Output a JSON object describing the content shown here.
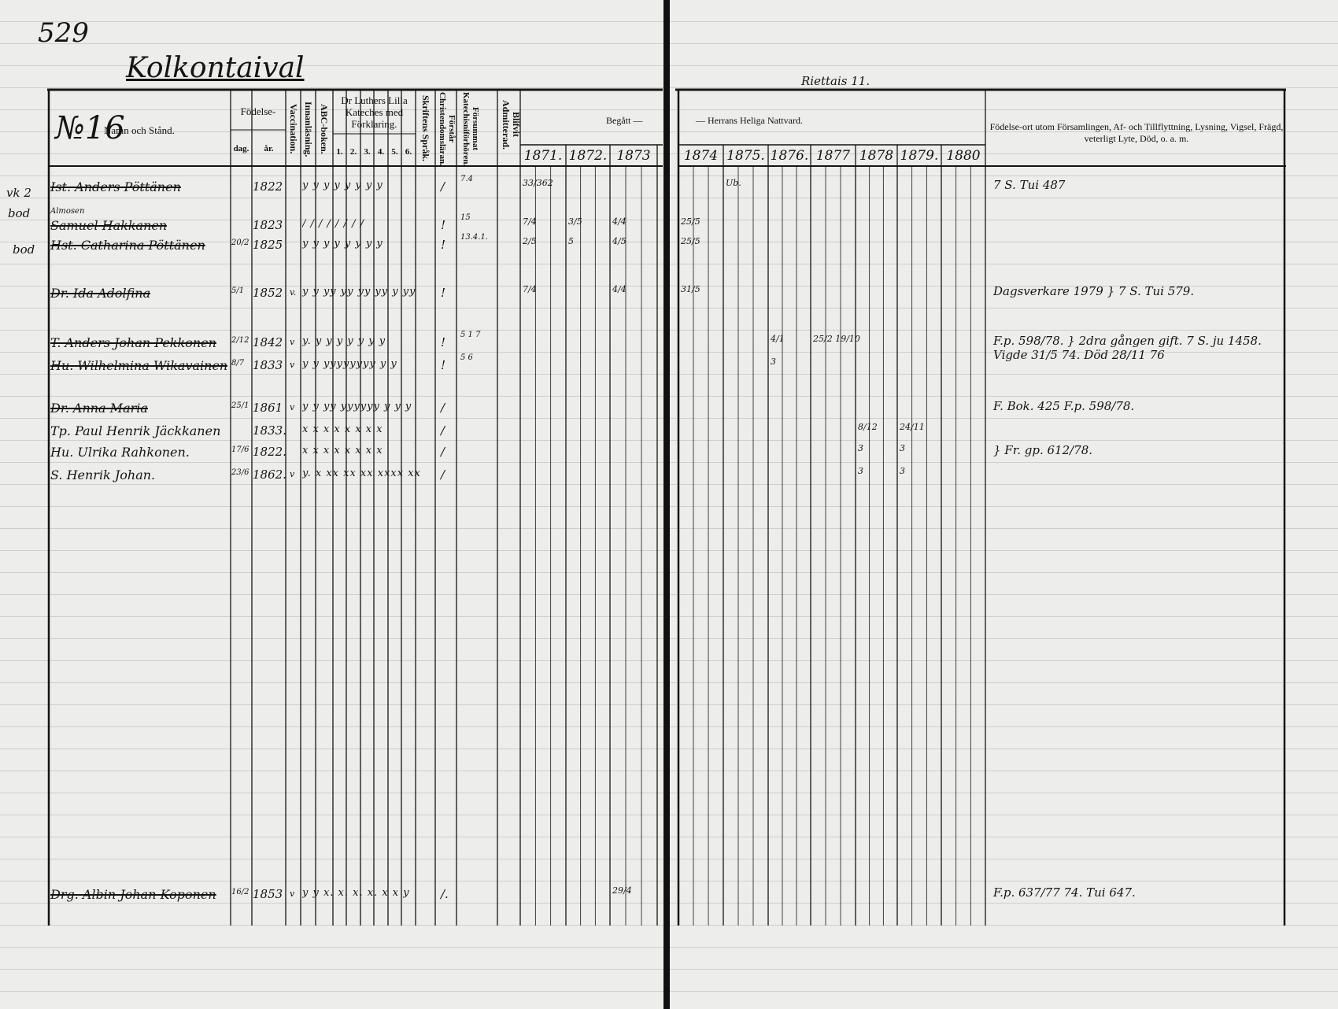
{
  "page_number": "529",
  "village": "Kolkontaival",
  "right_header": "Riettais 11.",
  "header": {
    "no_label": "№16",
    "name_label": "Namn och Stånd.",
    "birth_label": "Födelse-",
    "day_label": "dag.",
    "year_label": "år.",
    "vaccination": "Vaccination.",
    "reading": "Innanläsning.",
    "abc": "ABC-boken.",
    "catechism": "Dr Luthers Lilla Kateches med Förklaring.",
    "cat_parts": [
      "1.",
      "2.",
      "3.",
      "4.",
      "5.",
      "6."
    ],
    "scripture": "Skriftens Språk.",
    "understands": "Förstår Christendomsläran.",
    "missed": "Försummat Katechisniförhören.",
    "admitted": "Blifvit Admitterad.",
    "communion_left": "Begått —",
    "communion_right": "— Herrans Heliga Nattvard.",
    "remarks": "Födelse-ort utom Församlingen, Af- och Tillflyttning, Lysning, Vigsel, Frägd, veterligt Lyte, Död, o. a. m.",
    "years_left": [
      "1871.",
      "1872.",
      "1873"
    ],
    "years_right": [
      "1874",
      "1875.",
      "1876.",
      "1877",
      "1878",
      "1879.",
      "1880"
    ]
  },
  "margin_notes": [
    "vk 2",
    "bod",
    "bod"
  ],
  "rows": [
    {
      "name": "Ist. Anders Pöttänen",
      "struck": true,
      "day": "",
      "year": "1822",
      "vacc": "",
      "marks": "y  y  y  y  y  y  y  y",
      "admit": "/",
      "kat": "7.4",
      "adm": "33/362",
      "comm": [
        {
          "col": 4,
          "text": "Ub."
        }
      ],
      "remark": "7 S. Tui 487"
    },
    {
      "name": "Samuel Hakkanen",
      "above": "Almosen",
      "struck": true,
      "day": "",
      "year": "1823",
      "vacc": "",
      "marks": "/  /  /  /  /  /  /  /",
      "admit": "!",
      "kat": "15",
      "adm": "7/4",
      "comm": [
        {
          "col": 1,
          "text": "3/5"
        },
        {
          "col": 2,
          "text": "4/4"
        },
        {
          "col": 3,
          "text": "25/5"
        }
      ],
      "remark": ""
    },
    {
      "name": "Hst. Catharina Pöttänen",
      "struck": true,
      "day": "20/2",
      "year": "1825",
      "vacc": "",
      "marks": "y  y  y  y  y  y  y  y",
      "admit": "!",
      "kat": "13.4.1.",
      "adm": "2/5",
      "comm": [
        {
          "col": 1,
          "text": "5"
        },
        {
          "col": 2,
          "text": "4/5"
        },
        {
          "col": 3,
          "text": "25/5"
        }
      ],
      "remark": ""
    },
    {
      "name": "Dr. Ida Adolfina",
      "struck": true,
      "day": "5/1",
      "year": "1852",
      "vacc": "v.",
      "marks": "y y yy yy yy yy y yy",
      "admit": "!",
      "kat": "",
      "adm": "7/4",
      "comm": [
        {
          "col": 2,
          "text": "4/4"
        },
        {
          "col": 3,
          "text": "31/5"
        }
      ],
      "remark": "Dagsverkare 1979  } 7 S. Tui 579."
    },
    {
      "name": "T. Anders Johan Pekkonen",
      "struck": true,
      "day": "2/12",
      "year": "1842",
      "vacc": "v",
      "marks": "y.  y y  y y  y y  y",
      "admit": "!",
      "kat": "5 1 7",
      "adm": "",
      "comm": [
        {
          "col": 5,
          "text": "4/1"
        },
        {
          "col": 6,
          "text": "25/2 19/10"
        }
      ],
      "remark": "F.p. 598/78.  } 2dra gången gift. 7 S. ju 1458. Vigde 31/5 74. Död 28/11 76"
    },
    {
      "name": "Hu. Wilhelmina Wikavainen",
      "struck": true,
      "day": "8/7",
      "year": "1833",
      "vacc": "v",
      "marks": "y  y  yyyyyyyy  y y",
      "admit": "!",
      "kat": "5 6",
      "adm": "",
      "comm": [
        {
          "col": 5,
          "text": "3"
        }
      ],
      "remark": ""
    },
    {
      "name": "Dr. Anna Maria",
      "struck": true,
      "day": "25/1",
      "year": "1861",
      "vacc": "v",
      "marks": "y y yy yyyyyy y y y",
      "admit": "/",
      "kat": "",
      "adm": "",
      "comm": [],
      "remark": "F. Bok. 425  F.p. 598/78."
    },
    {
      "name": "Tp. Paul Henrik Jäckkanen",
      "struck": false,
      "day": "",
      "year": "1833.",
      "vacc": "",
      "marks": "x  x  x  x  x  x  x  x",
      "admit": "/",
      "kat": "",
      "adm": "",
      "comm": [
        {
          "col": 7,
          "text": "8/12"
        },
        {
          "col": 8,
          "text": "24/11"
        }
      ],
      "remark": ""
    },
    {
      "name": "Hu. Ulrika Rahkonen.",
      "struck": false,
      "day": "17/6",
      "year": "1822.",
      "vacc": "",
      "marks": "x  x  x  x  x  x  x  x",
      "admit": "/",
      "kat": "",
      "adm": "",
      "comm": [
        {
          "col": 7,
          "text": "3"
        },
        {
          "col": 8,
          "text": "3"
        }
      ],
      "remark": "} Fr. gp. 612/78."
    },
    {
      "name": "S. Henrik Johan.",
      "struck": false,
      "day": "23/6",
      "year": "1862.",
      "vacc": "v",
      "marks": "y. x xx xx xx xxxx xx xx",
      "admit": "/",
      "kat": "",
      "adm": "",
      "comm": [
        {
          "col": 7,
          "text": "3"
        },
        {
          "col": 8,
          "text": "3"
        }
      ],
      "remark": ""
    },
    {
      "name": "Drg. Albin Johan Koponen",
      "struck": true,
      "day": "16/2",
      "year": "1853",
      "vacc": "v",
      "marks": "y y x. x. x. x. x x y",
      "admit": "/.",
      "kat": "",
      "adm": "",
      "comm": [
        {
          "col": 2,
          "text": "29/4"
        }
      ],
      "remark": "F.p. 637/77  74. Tui 647."
    }
  ]
}
